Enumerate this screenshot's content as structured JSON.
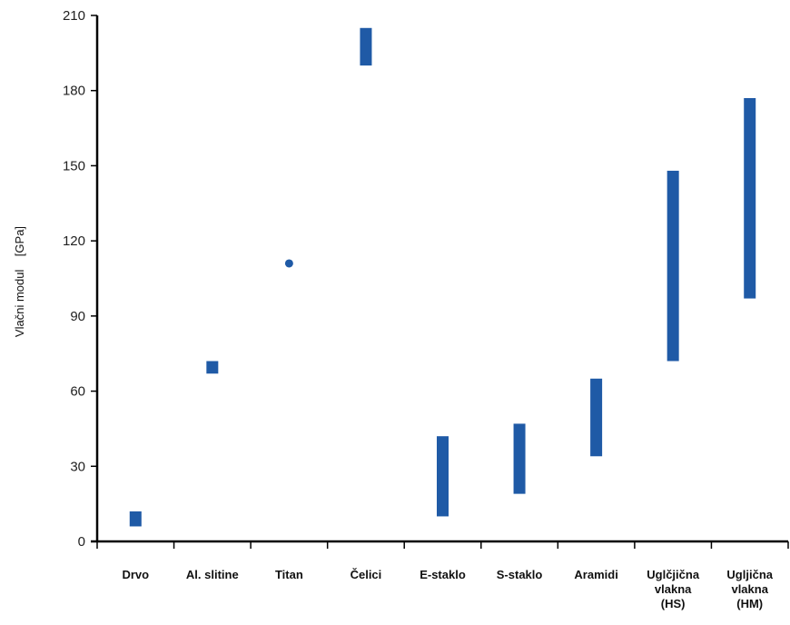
{
  "chart_data": {
    "type": "bar",
    "subtype": "floating-range",
    "title": "",
    "xlabel": "",
    "ylabel": "Vlačni modul    [GPa]",
    "ylim": [
      0,
      210
    ],
    "yticks": [
      0,
      30,
      60,
      90,
      120,
      150,
      180,
      210
    ],
    "grid": false,
    "legend": "none",
    "bar_color": "#1f5aa6",
    "categories": [
      "Drvo",
      "Al. slitine",
      "Titan",
      "Čelici",
      "E-staklo",
      "S-staklo",
      "Aramidi",
      "Uglčjična\nvlakna\n(HS)",
      "Ugljična\nvlakna\n(HM)"
    ],
    "ranges": [
      {
        "low": 6,
        "high": 12
      },
      {
        "low": 67,
        "high": 72
      },
      {
        "point": 111
      },
      {
        "low": 190,
        "high": 205
      },
      {
        "low": 10,
        "high": 42
      },
      {
        "low": 19,
        "high": 47
      },
      {
        "low": 34,
        "high": 65
      },
      {
        "low": 72,
        "high": 148
      },
      {
        "low": 97,
        "high": 177
      }
    ]
  }
}
